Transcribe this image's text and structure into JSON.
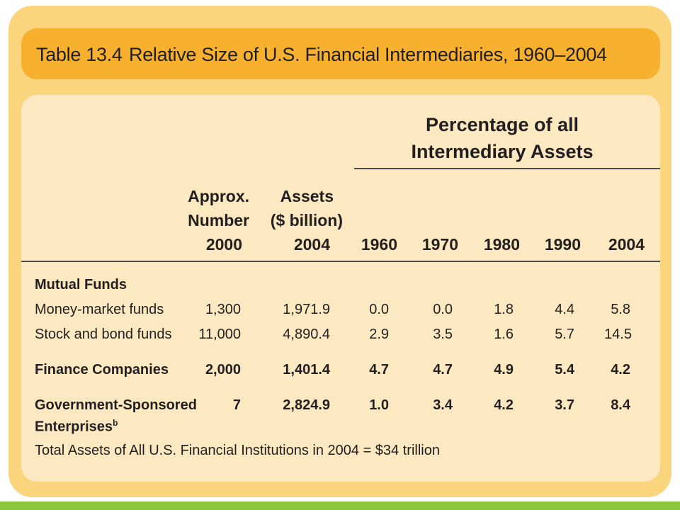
{
  "table": {
    "number": "Table 13.4",
    "title": "Relative Size of U.S. Financial Intermediaries, 1960–2004",
    "pct_header_line1": "Percentage of all",
    "pct_header_line2": "Intermediary Assets",
    "columns": {
      "approx": [
        "Approx.",
        "Number",
        "2000"
      ],
      "assets": [
        "Assets",
        "($ billion)",
        "2004"
      ],
      "years": [
        "1960",
        "1970",
        "1980",
        "1990",
        "2004"
      ]
    },
    "group_mutual": "Mutual Funds",
    "rows": [
      {
        "label": "Money-market funds",
        "number": "1,300",
        "assets": "1,971.9",
        "values": [
          "0.0",
          "0.0",
          "1.8",
          "4.4",
          "5.8"
        ]
      },
      {
        "label": "Stock and bond funds",
        "number": "11,000",
        "assets": "4,890.4",
        "values": [
          "2.9",
          "3.5",
          "1.6",
          "5.7",
          "14.5"
        ]
      },
      {
        "label": "Finance Companies",
        "number": "2,000",
        "assets": "1,401.4",
        "values": [
          "4.7",
          "4.7",
          "4.9",
          "5.4",
          "4.2"
        ]
      },
      {
        "label": "Government-Sponsored",
        "label2": "Enterprises",
        "sup": "b",
        "number": "7",
        "assets": "2,824.9",
        "values": [
          "1.0",
          "3.4",
          "4.2",
          "3.7",
          "8.4"
        ]
      }
    ],
    "footnote": "Total Assets of All U.S. Financial Institutions in 2004 = $34 trillion"
  }
}
